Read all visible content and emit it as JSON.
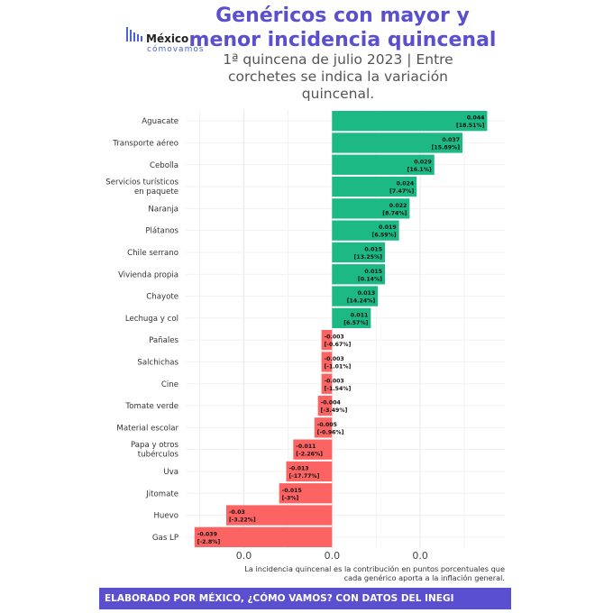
{
  "logo": {
    "name": "México",
    "sub": "cómovamos"
  },
  "chart_data": {
    "type": "bar",
    "orientation": "horizontal",
    "title": "Genéricos con mayor y menor incidencia quincenal",
    "subtitle": "1ª quincena de julio 2023 | Entre corchetes se indica la variación quincenal.",
    "categories": [
      "Aguacate",
      "Transporte aéreo",
      "Cebolla",
      "Servicios turísticos en paquete",
      "Naranja",
      "Plátanos",
      "Chile serrano",
      "Vivienda propia",
      "Chayote",
      "Lechuga y col",
      "Pañales",
      "Salchichas",
      "Cine",
      "Tomate verde",
      "Material escolar",
      "Papa y otros tubérculos",
      "Uva",
      "Jitomate",
      "Huevo",
      "Gas LP"
    ],
    "values": [
      0.044,
      0.037,
      0.029,
      0.024,
      0.022,
      0.019,
      0.015,
      0.015,
      0.013,
      0.011,
      -0.003,
      -0.003,
      -0.003,
      -0.004,
      -0.005,
      -0.011,
      -0.013,
      -0.015,
      -0.03,
      -0.039
    ],
    "value_labels": [
      "0.044",
      "0.037",
      "0.029",
      "0.024",
      "0.022",
      "0.019",
      "0.015",
      "0.015",
      "0.013",
      "0.011",
      "-0.003",
      "-0.003",
      "-0.003",
      "-0.004",
      "-0.005",
      "-0.011",
      "-0.013",
      "-0.015",
      "-0.03",
      "-0.039"
    ],
    "variation_labels": [
      "[18.51%]",
      "[15.89%]",
      "[16.1%]",
      "[7.47%]",
      "[8.74%]",
      "[6.59%]",
      "[13.25%]",
      "[0.14%]",
      "[14.24%]",
      "[6.57%]",
      "[-0.67%]",
      "[-1.01%]",
      "[-1.54%]",
      "[-3.49%]",
      "[-0.96%]",
      "[-2.26%]",
      "[-17.77%]",
      "[-3%]",
      "[-3.22%]",
      "[-2.8%]"
    ],
    "xticks": [
      -0.025,
      0,
      0.025
    ],
    "xtick_labels": [
      "0.0",
      "0.0",
      "0.0"
    ],
    "xlim": [
      -0.0415,
      0.049
    ],
    "colors": {
      "positive": "#1db985",
      "negative": "#fc6363"
    },
    "grid": true
  },
  "note": "La incidencia quincenal es la contribución en puntos porcentuales que cada genérico aporta a la inflación general.",
  "footer": "ELABORADO POR MÉXICO, ¿CÓMO VAMOS? CON DATOS DEL INEGI"
}
